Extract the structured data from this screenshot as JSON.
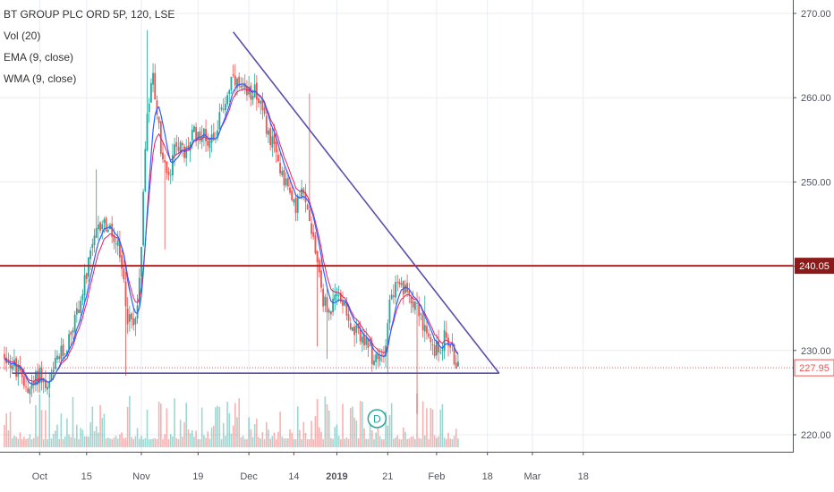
{
  "chart_data": {
    "type": "candlestick",
    "legend": {
      "title": "BT GROUP PLC ORD 5P, 120, LSE",
      "indicators": [
        "Vol (20)",
        "EMA (9, close)",
        "WMA (9, close)"
      ]
    },
    "price_axis": {
      "ticks": [
        270,
        260,
        250,
        240,
        230,
        220
      ],
      "tick_labels": [
        "270.00",
        "260.00",
        "250.00",
        "240.00",
        "230.00",
        "220.00"
      ],
      "ylim": [
        218.5,
        271.2
      ]
    },
    "time_axis": {
      "labels": [
        "Oct",
        "15",
        "Nov",
        "19",
        "Dec",
        "14",
        "2019",
        "21",
        "Feb",
        "18",
        "Mar",
        "18"
      ],
      "bold_labels": [
        "2019"
      ],
      "label_bar_index": [
        18,
        42,
        70,
        99,
        125,
        148,
        170,
        196,
        221,
        247,
        270,
        296
      ],
      "bar_count": 310
    },
    "resistance_line": {
      "price": 240.05,
      "label": "240.05",
      "color": "#b22222"
    },
    "last_price": {
      "price": 227.95,
      "label": "227.95",
      "color": "#ef5350"
    },
    "triangle": {
      "color": "#5b4fa8",
      "top_vertex": {
        "bar": 117,
        "price": 267.8
      },
      "apex": {
        "bar": 253,
        "price": 227.3
      },
      "base_start": {
        "bar": 4,
        "price": 227.3
      }
    },
    "dividend_marker": {
      "label": "D",
      "bar": 164
    },
    "anchors": [
      [
        0,
        229.5
      ],
      [
        5,
        228.0
      ],
      [
        10,
        226.0
      ],
      [
        14,
        225.5
      ],
      [
        18,
        227.5
      ],
      [
        22,
        225.0
      ],
      [
        27,
        229.0
      ],
      [
        31,
        230.0
      ],
      [
        35,
        233.0
      ],
      [
        39,
        236.0
      ],
      [
        42,
        239.0
      ],
      [
        46,
        243.0
      ],
      [
        50,
        245.5
      ],
      [
        54,
        244.0
      ],
      [
        58,
        242.0
      ],
      [
        61,
        238.0
      ],
      [
        63,
        234.0
      ],
      [
        66,
        233.0
      ],
      [
        69,
        238.0
      ],
      [
        73,
        259.0
      ],
      [
        76,
        262.5
      ],
      [
        80,
        254.0
      ],
      [
        84,
        250.0
      ],
      [
        88,
        255.0
      ],
      [
        92,
        253.0
      ],
      [
        96,
        255.5
      ],
      [
        100,
        256.0
      ],
      [
        104,
        255.0
      ],
      [
        108,
        256.0
      ],
      [
        112,
        259.0
      ],
      [
        116,
        262.0
      ],
      [
        120,
        261.0
      ],
      [
        124,
        260.0
      ],
      [
        128,
        261.5
      ],
      [
        132,
        258.0
      ],
      [
        136,
        255.0
      ],
      [
        140,
        252.5
      ],
      [
        144,
        250.0
      ],
      [
        148,
        247.0
      ],
      [
        152,
        248.5
      ],
      [
        156,
        246.0
      ],
      [
        160,
        241.0
      ],
      [
        163,
        236.0
      ],
      [
        166,
        234.5
      ],
      [
        170,
        236.5
      ],
      [
        174,
        236.0
      ],
      [
        178,
        232.0
      ],
      [
        182,
        232.0
      ],
      [
        186,
        230.0
      ],
      [
        190,
        228.5
      ],
      [
        194,
        229.5
      ],
      [
        197,
        236.0
      ],
      [
        200,
        237.5
      ],
      [
        204,
        237.0
      ],
      [
        208,
        236.5
      ],
      [
        212,
        235.0
      ],
      [
        215,
        232.0
      ],
      [
        218,
        230.5
      ],
      [
        222,
        230.0
      ],
      [
        226,
        232.0
      ],
      [
        229,
        230.0
      ],
      [
        232,
        228.0
      ]
    ],
    "volume": {
      "indicator": "Vol (20)",
      "up_color": "#26a69a",
      "down_color": "#ef5350"
    },
    "series_colors": {
      "up": "#26a69a",
      "down": "#ef5350",
      "ema": "#e91e63",
      "wma": "#2962ff"
    }
  }
}
